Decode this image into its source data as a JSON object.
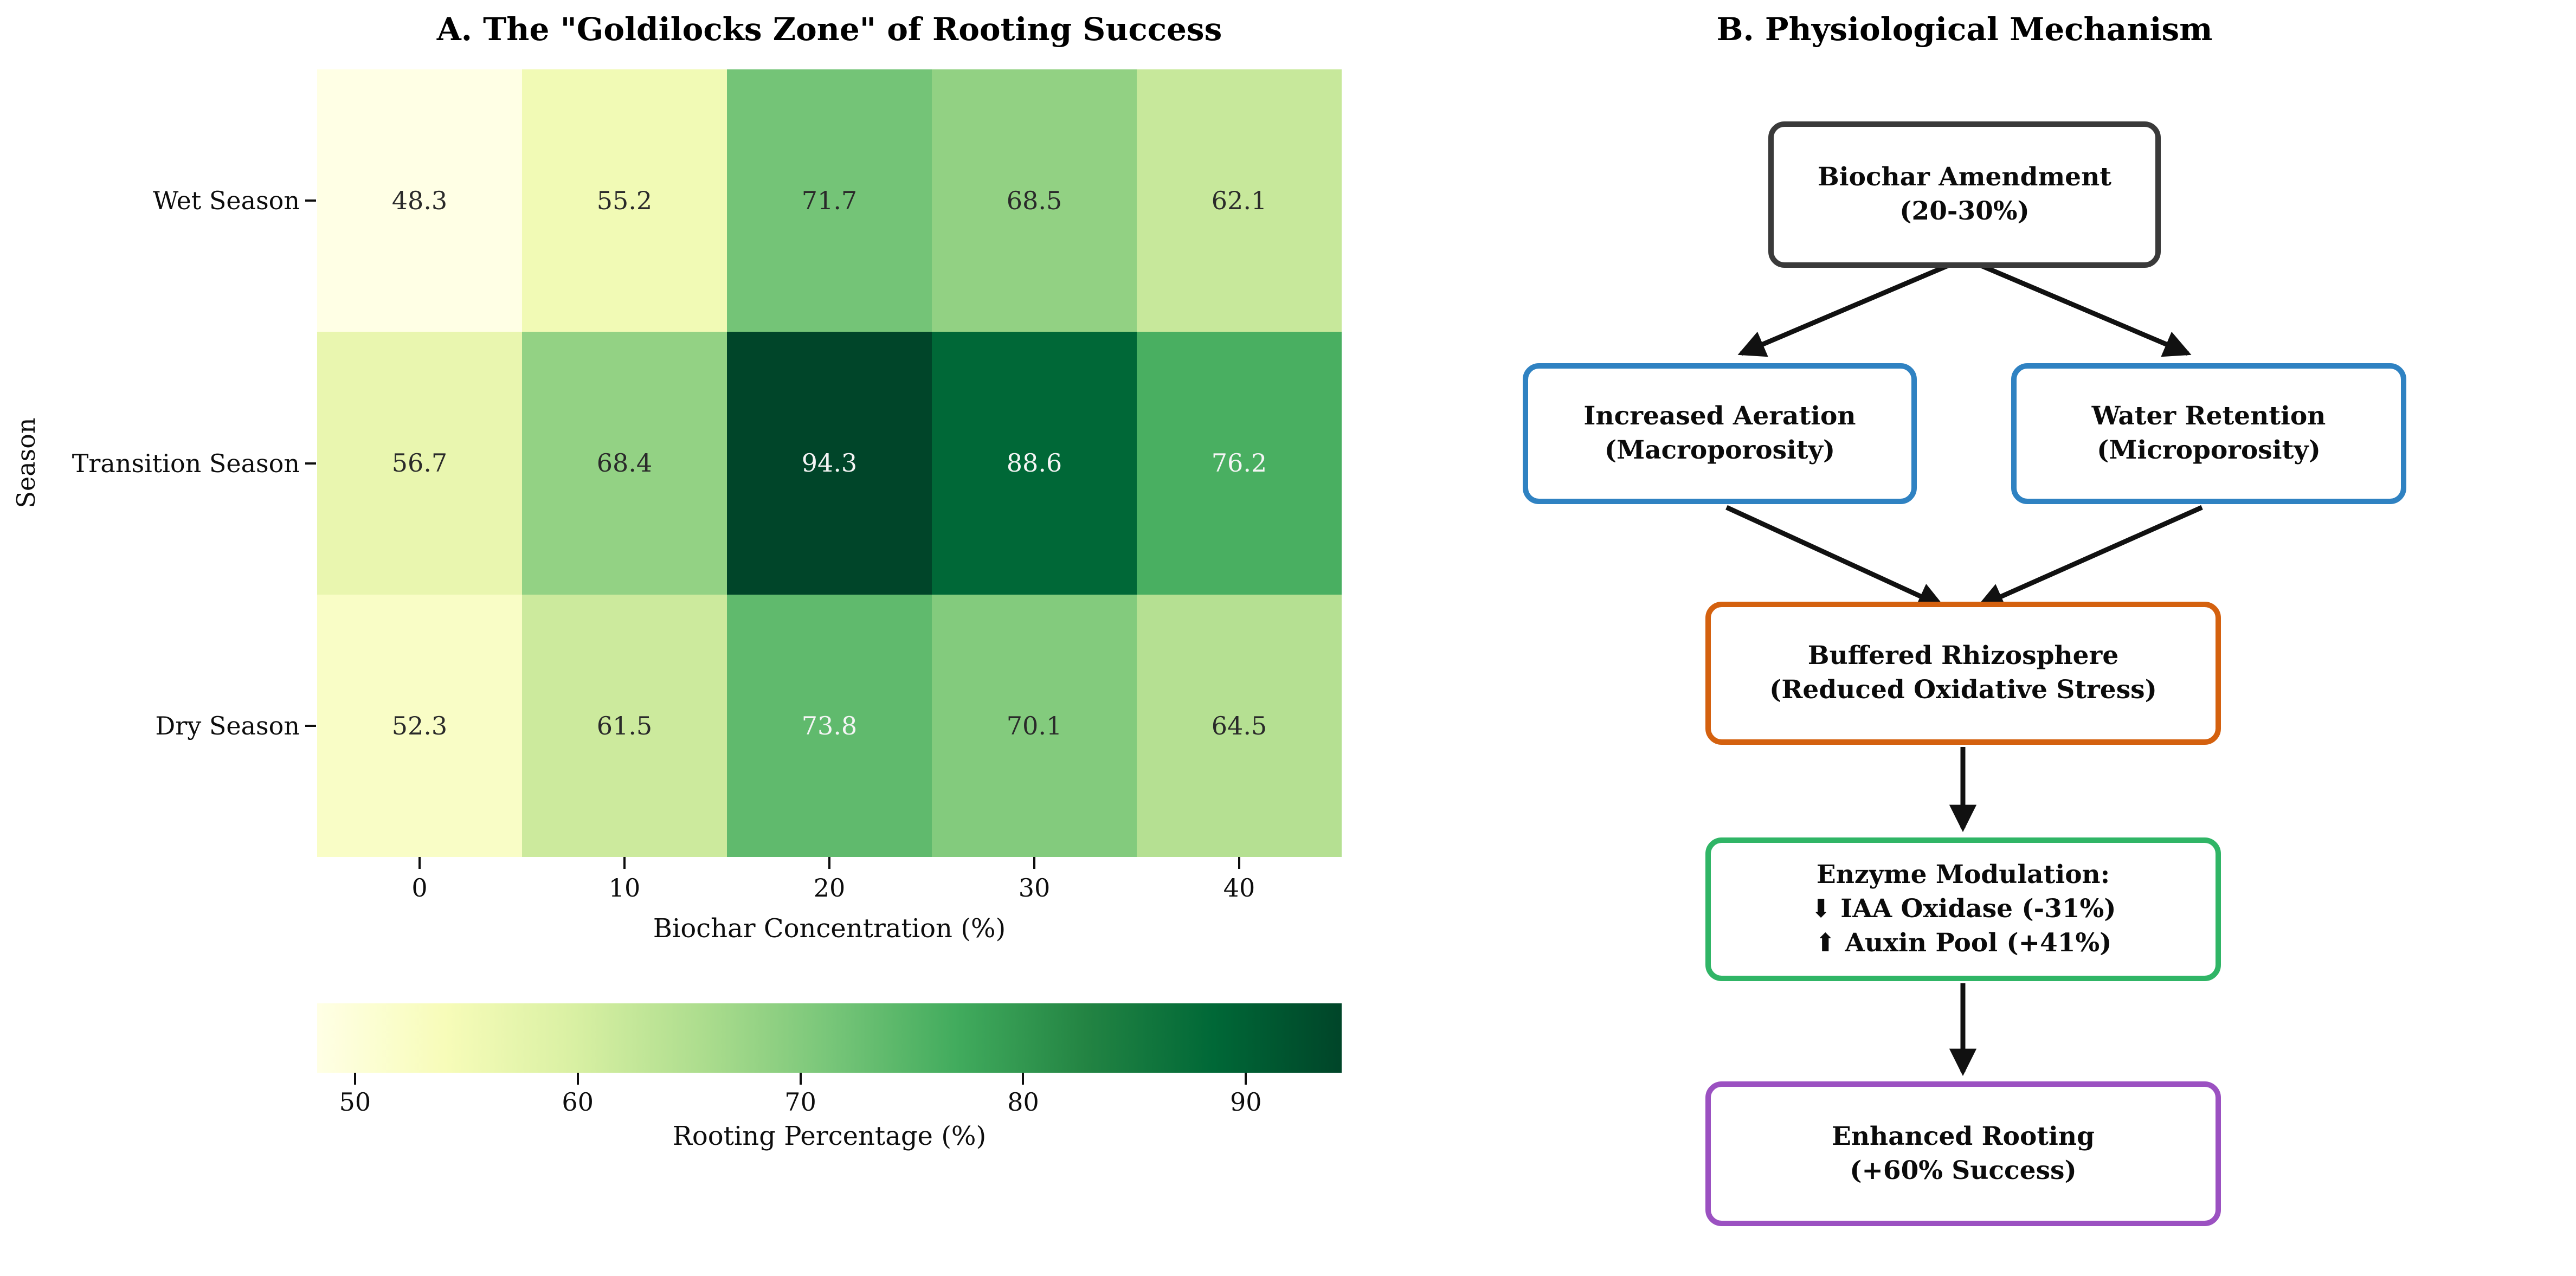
{
  "colors": {
    "background": "#ffffff",
    "annotation_dark": "#2a2a2a",
    "annotation_white": "#f5f5f5",
    "axis_text": "#0d0d0d",
    "arrow": "#111111"
  },
  "chart_data": [
    {
      "type": "heatmap",
      "title": "A. The \"Goldilocks Zone\" of Rooting Success",
      "xlabel": "Biochar Concentration (%)",
      "ylabel": "Season",
      "x_categories": [
        "0",
        "10",
        "20",
        "30",
        "40"
      ],
      "y_categories": [
        "Wet Season",
        "Transition Season",
        "Dry Season"
      ],
      "values": [
        [
          48.3,
          55.2,
          71.7,
          68.5,
          62.1
        ],
        [
          56.7,
          68.4,
          94.3,
          88.6,
          76.2
        ],
        [
          52.3,
          61.5,
          73.8,
          70.1,
          64.5
        ]
      ],
      "annotation_styles": [
        [
          "dark",
          "dark",
          "dark",
          "dark",
          "dark"
        ],
        [
          "dark",
          "dark",
          "white",
          "white",
          "white"
        ],
        [
          "dark",
          "dark",
          "white",
          "dark",
          "dark"
        ]
      ],
      "vmin": 48.3,
      "vmax": 94.3,
      "colormap": "YlGn",
      "colormap_stops": [
        [
          0,
          "#ffffe5"
        ],
        [
          0.125,
          "#f7fcb9"
        ],
        [
          0.25,
          "#d9f0a3"
        ],
        [
          0.375,
          "#addd8e"
        ],
        [
          0.5,
          "#78c679"
        ],
        [
          0.625,
          "#41ab5d"
        ],
        [
          0.75,
          "#238443"
        ],
        [
          0.875,
          "#006837"
        ],
        [
          1,
          "#004529"
        ]
      ],
      "colorbar": {
        "label": "Rooting Percentage (%)",
        "ticks": [
          50,
          60,
          70,
          80,
          90
        ]
      },
      "grid": false,
      "legend": false
    },
    {
      "type": "flowchart",
      "title": "B. Physiological Mechanism",
      "boxes": [
        {
          "id": "biochar",
          "lines": [
            "Biochar Amendment",
            "(20-30%)"
          ],
          "border_color": "#3a3a3a"
        },
        {
          "id": "aeration",
          "lines": [
            "Increased Aeration",
            "(Macroporosity)"
          ],
          "border_color": "#2f82c2"
        },
        {
          "id": "water-retention",
          "lines": [
            "Water Retention",
            "(Microporosity)"
          ],
          "border_color": "#2f82c2"
        },
        {
          "id": "rhizosphere",
          "lines": [
            "Buffered Rhizosphere",
            "(Reduced Oxidative Stress)"
          ],
          "border_color": "#d4610f"
        },
        {
          "id": "enzyme",
          "lines": [
            "Enzyme Modulation:",
            "⬇ IAA Oxidase (-31%)",
            "⬆ Auxin Pool (+41%)"
          ],
          "border_color": "#30b566"
        },
        {
          "id": "rooting",
          "lines": [
            "Enhanced Rooting",
            "(+60% Success)"
          ],
          "border_color": "#9b51c1"
        }
      ],
      "edges": [
        {
          "from": "biochar",
          "to": "aeration"
        },
        {
          "from": "biochar",
          "to": "water-retention"
        },
        {
          "from": "aeration",
          "to": "rhizosphere"
        },
        {
          "from": "water-retention",
          "to": "rhizosphere"
        },
        {
          "from": "rhizosphere",
          "to": "enzyme"
        },
        {
          "from": "enzyme",
          "to": "rooting"
        }
      ]
    }
  ]
}
